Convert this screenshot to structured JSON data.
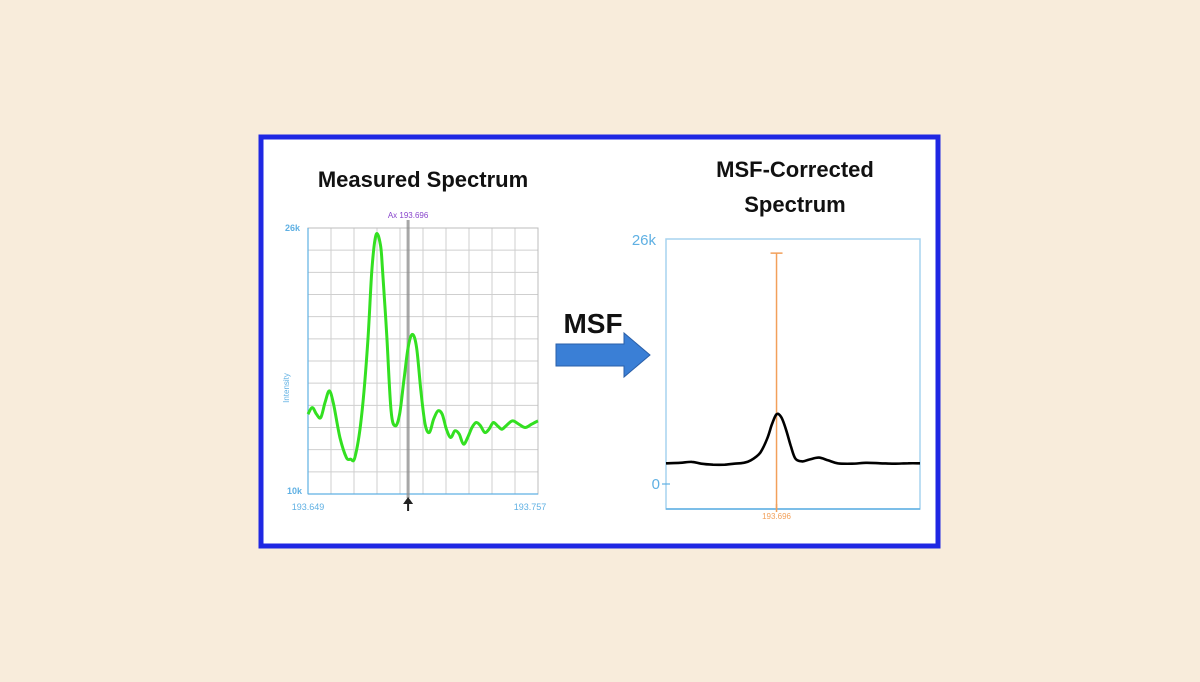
{
  "colors": {
    "page_background": "#f8ecdb",
    "frame_border": "#1f27e3",
    "grid": "#cfcfcf",
    "axis_blue": "#5fb0e3",
    "measured_line": "#33e021",
    "cursor": "#8a8a8a",
    "cursor_label": "#8844cc",
    "corrected_line": "#000000",
    "peak_marker": "#f2a05a",
    "arrow": "#3a7fd6"
  },
  "arrow": {
    "label": "MSF",
    "icon": "right-arrow-icon"
  },
  "chart_data": [
    {
      "type": "line",
      "title": "Measured Spectrum",
      "ylabel": "Intensity",
      "xlim": [
        193.649,
        193.757
      ],
      "ylim": [
        10000,
        26000
      ],
      "x_tick_labels": [
        "193.649",
        "193.757"
      ],
      "y_tick_labels": [
        "26k",
        "10k"
      ],
      "grid": true,
      "cursor": {
        "x": 193.696,
        "label": "Ax 193.696",
        "marker_icon": "cursor-triangle-icon"
      },
      "series": [
        {
          "x": [
            193.649,
            193.651,
            193.653,
            193.655,
            193.657,
            193.659,
            193.661,
            193.664,
            193.667,
            193.669,
            193.671,
            193.674,
            193.677,
            193.679,
            193.681,
            193.683,
            193.684,
            193.686,
            193.688,
            193.69,
            193.692,
            193.694,
            193.696,
            193.698,
            193.7,
            193.702,
            193.704,
            193.706,
            193.708,
            193.71,
            193.712,
            193.714,
            193.716,
            193.718,
            193.72,
            193.722,
            193.724,
            193.726,
            193.728,
            193.73,
            193.732,
            193.734,
            193.736,
            193.738,
            193.74,
            193.742,
            193.745,
            193.748,
            193.751,
            193.754,
            193.757
          ],
          "values": [
            14800,
            15200,
            14800,
            14600,
            15500,
            16200,
            15400,
            13400,
            12200,
            12100,
            12200,
            14500,
            19000,
            23500,
            25600,
            25000,
            23500,
            19500,
            15000,
            14100,
            14800,
            16800,
            18800,
            19600,
            18800,
            16200,
            14200,
            13700,
            14500,
            15000,
            14800,
            13900,
            13400,
            13800,
            13600,
            13000,
            13400,
            14000,
            14300,
            14100,
            13700,
            13900,
            14300,
            14100,
            13900,
            14100,
            14400,
            14200,
            14000,
            14200,
            14400
          ]
        }
      ]
    },
    {
      "type": "line",
      "title": "MSF-Corrected Spectrum",
      "xlim": [
        193.649,
        193.757
      ],
      "ylim": [
        0,
        26000
      ],
      "y_tick_labels": [
        "26k",
        "0"
      ],
      "x_tick_labels": [
        "193.696"
      ],
      "grid": false,
      "peak_marker": {
        "x": 193.696,
        "top": 24500,
        "label": "193.696"
      },
      "series": [
        {
          "x": [
            193.649,
            193.655,
            193.66,
            193.664,
            193.669,
            193.674,
            193.678,
            193.682,
            193.685,
            193.689,
            193.692,
            193.694,
            193.696,
            193.698,
            193.7,
            193.702,
            193.704,
            193.707,
            193.71,
            193.714,
            193.718,
            193.722,
            193.728,
            193.734,
            193.74,
            193.746,
            193.752,
            193.757
          ],
          "values": [
            2200,
            2250,
            2350,
            2150,
            2050,
            2050,
            2150,
            2250,
            2500,
            3300,
            4800,
            6300,
            7400,
            7100,
            5800,
            4100,
            2700,
            2400,
            2600,
            2800,
            2500,
            2200,
            2150,
            2250,
            2200,
            2150,
            2200,
            2200
          ]
        }
      ]
    }
  ]
}
